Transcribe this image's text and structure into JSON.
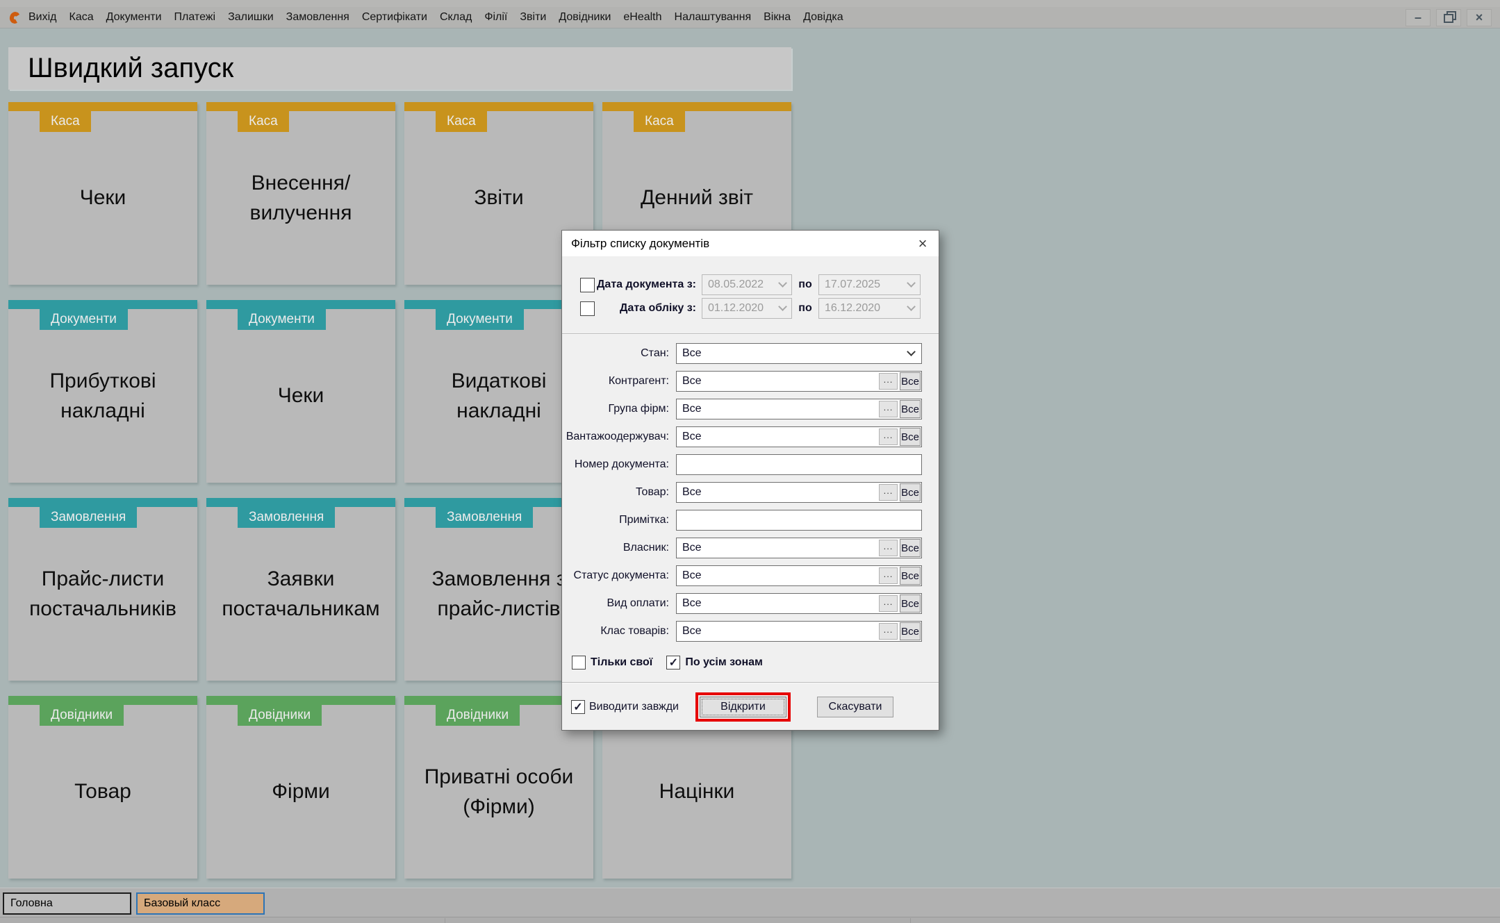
{
  "menubar": {
    "items": [
      "Вихід",
      "Каса",
      "Документи",
      "Платежі",
      "Залишки",
      "Замовлення",
      "Сертифікати",
      "Склад",
      "Філії",
      "Звіти",
      "Довідники",
      "eHealth",
      "Налаштування",
      "Вікна",
      "Довідка"
    ]
  },
  "window_controls": {
    "minimize": "–",
    "close": "×"
  },
  "quick_launch": {
    "title": "Швидкий запуск",
    "category_colors": {
      "Каса": "#c8931d",
      "Документи": "#2f9aa0",
      "Замовлення": "#2f9aa0",
      "Довідники": "#5ba35c"
    },
    "tiles": [
      {
        "category": "Каса",
        "label": "Чеки"
      },
      {
        "category": "Каса",
        "label": "Внесення/вилучення"
      },
      {
        "category": "Каса",
        "label": "Звіти"
      },
      {
        "category": "Каса",
        "label": "Денний звіт"
      },
      {
        "category": "Документи",
        "label": "Прибуткові накладні"
      },
      {
        "category": "Документи",
        "label": "Чеки"
      },
      {
        "category": "Документи",
        "label": "Видаткові накладні"
      },
      {
        "category": "",
        "label": ""
      },
      {
        "category": "Замовлення",
        "label": "Прайс-листи постачальників"
      },
      {
        "category": "Замовлення",
        "label": "Заявки постачальникам"
      },
      {
        "category": "Замовлення",
        "label": "Замовлення з прайс-листів"
      },
      {
        "category": "",
        "label": ""
      },
      {
        "category": "Довідники",
        "label": "Товар"
      },
      {
        "category": "Довідники",
        "label": "Фірми"
      },
      {
        "category": "Довідники",
        "label": "Приватні особи (Фірми)"
      },
      {
        "category": "Довідники",
        "label": "Націнки"
      }
    ]
  },
  "dialog": {
    "title": "Фільтр списку документів",
    "close": "×",
    "buttons": {
      "browse": "...",
      "all": "Все",
      "open": "Відкрити",
      "cancel": "Скасувати"
    },
    "date_rows": [
      {
        "checked": false,
        "label": "Дата документа з:",
        "from": "08.05.2022",
        "mid": "по",
        "to": "17.07.2025"
      },
      {
        "checked": false,
        "label": "Дата обліку з:",
        "from": "01.12.2020",
        "mid": "по",
        "to": "16.12.2020"
      }
    ],
    "fields": [
      {
        "label": "Стан:",
        "type": "select",
        "value": "Все"
      },
      {
        "label": "Контрагент:",
        "type": "lookup",
        "value": "Все"
      },
      {
        "label": "Група фірм:",
        "type": "lookup",
        "value": "Все"
      },
      {
        "label": "Вантажоодержувач:",
        "type": "lookup",
        "value": "Все"
      },
      {
        "label": "Номер документа:",
        "type": "text",
        "value": ""
      },
      {
        "label": "Товар:",
        "type": "lookup",
        "value": "Все"
      },
      {
        "label": "Примітка:",
        "type": "text",
        "value": ""
      },
      {
        "label": "Власник:",
        "type": "lookup",
        "value": "Все"
      },
      {
        "label": "Статус документа:",
        "type": "lookup",
        "value": "Все"
      },
      {
        "label": "Вид оплати:",
        "type": "lookup",
        "value": "Все"
      },
      {
        "label": "Клас товарів:",
        "type": "lookup",
        "value": "Все"
      }
    ],
    "options": [
      {
        "label": "Тільки свої",
        "checked": false
      },
      {
        "label": "По усім зонам",
        "checked": true
      }
    ],
    "footer_checkbox": {
      "label": "Виводити завжди",
      "checked": true
    }
  },
  "taskbar": {
    "tabs": [
      {
        "label": "Головна",
        "active": false
      },
      {
        "label": "Базовый класс",
        "active": true
      }
    ]
  },
  "colors": {
    "background": "#a9b5b5",
    "highlight": "#e60000",
    "tab_active_bg": "#d6a97c",
    "tab_active_border": "#2e74b5"
  }
}
